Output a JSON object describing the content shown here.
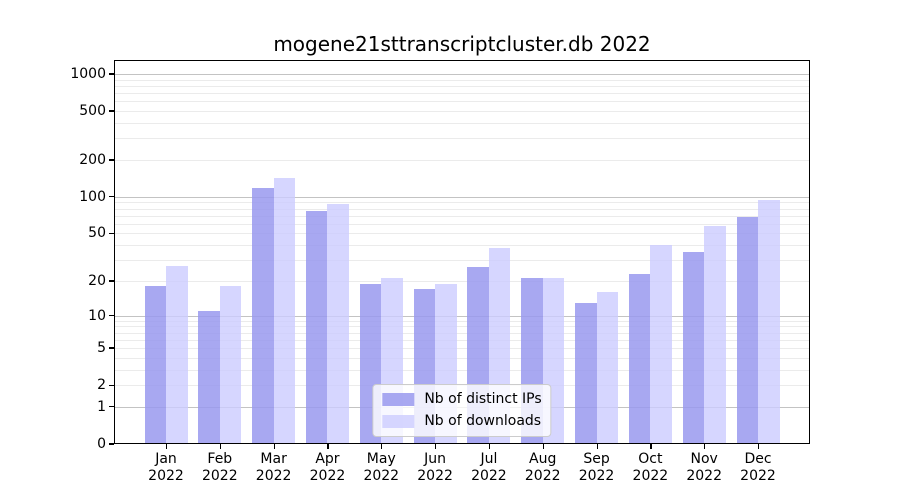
{
  "chart_data": {
    "type": "bar",
    "title": "mogene21sttranscriptcluster.db 2022",
    "categories": [
      "Jan 2022",
      "Feb 2022",
      "Mar 2022",
      "Apr 2022",
      "May 2022",
      "Jun 2022",
      "Jul 2022",
      "Aug 2022",
      "Sep 2022",
      "Oct 2022",
      "Nov 2022",
      "Dec 2022"
    ],
    "series": [
      {
        "name": "Nb of distinct IPs",
        "color": "#9999ee",
        "opacity": 0.85,
        "values": [
          18,
          11,
          118,
          77,
          19,
          17,
          26,
          21,
          13,
          23,
          35,
          68
        ]
      },
      {
        "name": "Nb of downloads",
        "color": "#ccccff",
        "opacity": 0.8,
        "values": [
          27,
          18,
          143,
          87,
          21,
          19,
          38,
          21,
          16,
          40,
          58,
          95
        ]
      }
    ],
    "yscale": "log1p",
    "ylim": [
      0,
      1000
    ],
    "yticks": [
      0,
      1,
      2,
      5,
      10,
      20,
      50,
      100,
      200,
      500,
      1000
    ],
    "major_gridlines": [
      1,
      10,
      100,
      1000
    ],
    "minor_gridlines": [
      2,
      3,
      4,
      5,
      6,
      7,
      8,
      9,
      20,
      30,
      40,
      50,
      60,
      70,
      80,
      90,
      200,
      300,
      400,
      500,
      600,
      700,
      800,
      900
    ],
    "grid": true,
    "legend_position": "lower center inside axes"
  },
  "colors": {
    "background": "#ffffff",
    "axis": "#000000",
    "grid_major": "#c3c3c3",
    "grid_minor": "#ebebeb",
    "text": "#000000",
    "legend_border": "#cccccc",
    "legend_background": "rgba(255,255,255,0.8)"
  }
}
